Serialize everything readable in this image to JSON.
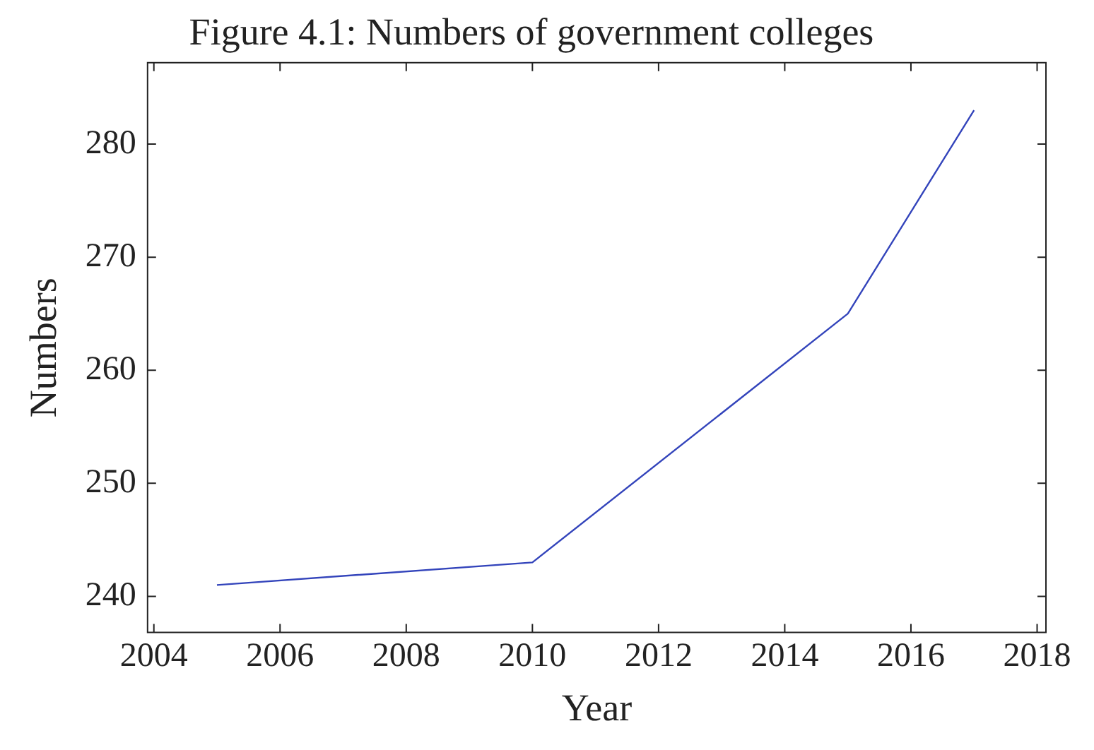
{
  "chart_data": {
    "type": "line",
    "title": "Figure 4.1: Numbers of government colleges",
    "xlabel": "Year",
    "ylabel": "Numbers",
    "x": [
      2005,
      2010,
      2015,
      2017
    ],
    "series": [
      {
        "color": "#3344bb",
        "values": [
          241,
          243,
          265,
          283
        ]
      }
    ],
    "xlim": [
      2003.9,
      2018.14
    ],
    "ylim": [
      236.8,
      287.2
    ],
    "xticks": [
      {
        "value": 2004,
        "label": "2004"
      },
      {
        "value": 2006,
        "label": "2006"
      },
      {
        "value": 2008,
        "label": "2008"
      },
      {
        "value": 2010,
        "label": "2010"
      },
      {
        "value": 2012,
        "label": "2012"
      },
      {
        "value": 2014,
        "label": "2014"
      },
      {
        "value": 2016,
        "label": "2016"
      },
      {
        "value": 2018,
        "label": "2018"
      }
    ],
    "yticks": [
      240,
      250,
      260,
      270,
      280
    ],
    "grid": false,
    "legend": false,
    "marker": "none",
    "line_style": "solid"
  }
}
